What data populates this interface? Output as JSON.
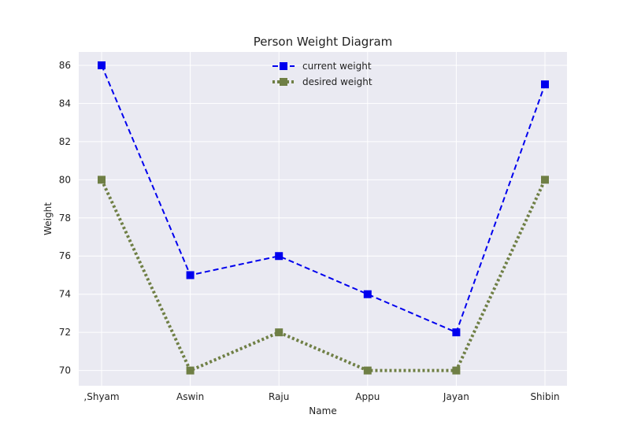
{
  "chart_data": {
    "type": "line",
    "title": "Person Weight Diagram",
    "xlabel": "Name",
    "ylabel": "Weight",
    "categories": [
      ",Shyam",
      "Aswin",
      "Raju",
      "Appu",
      "Jayan",
      "Shibin"
    ],
    "ylim": [
      69.2,
      86.7
    ],
    "yticks": [
      70,
      72,
      74,
      76,
      78,
      80,
      82,
      84,
      86
    ],
    "grid": true,
    "legend_position": "upper center",
    "series": [
      {
        "name": "current weight",
        "values": [
          86,
          75,
          76,
          74,
          72,
          85
        ],
        "color": "#0000ee",
        "line_style": "dashed",
        "marker": "square"
      },
      {
        "name": "desired weight",
        "values": [
          80,
          70,
          72,
          70,
          70,
          80
        ],
        "color": "#6f7f45",
        "line_style": "dotted",
        "marker": "square"
      }
    ],
    "background_color": "#eaeaf2"
  }
}
